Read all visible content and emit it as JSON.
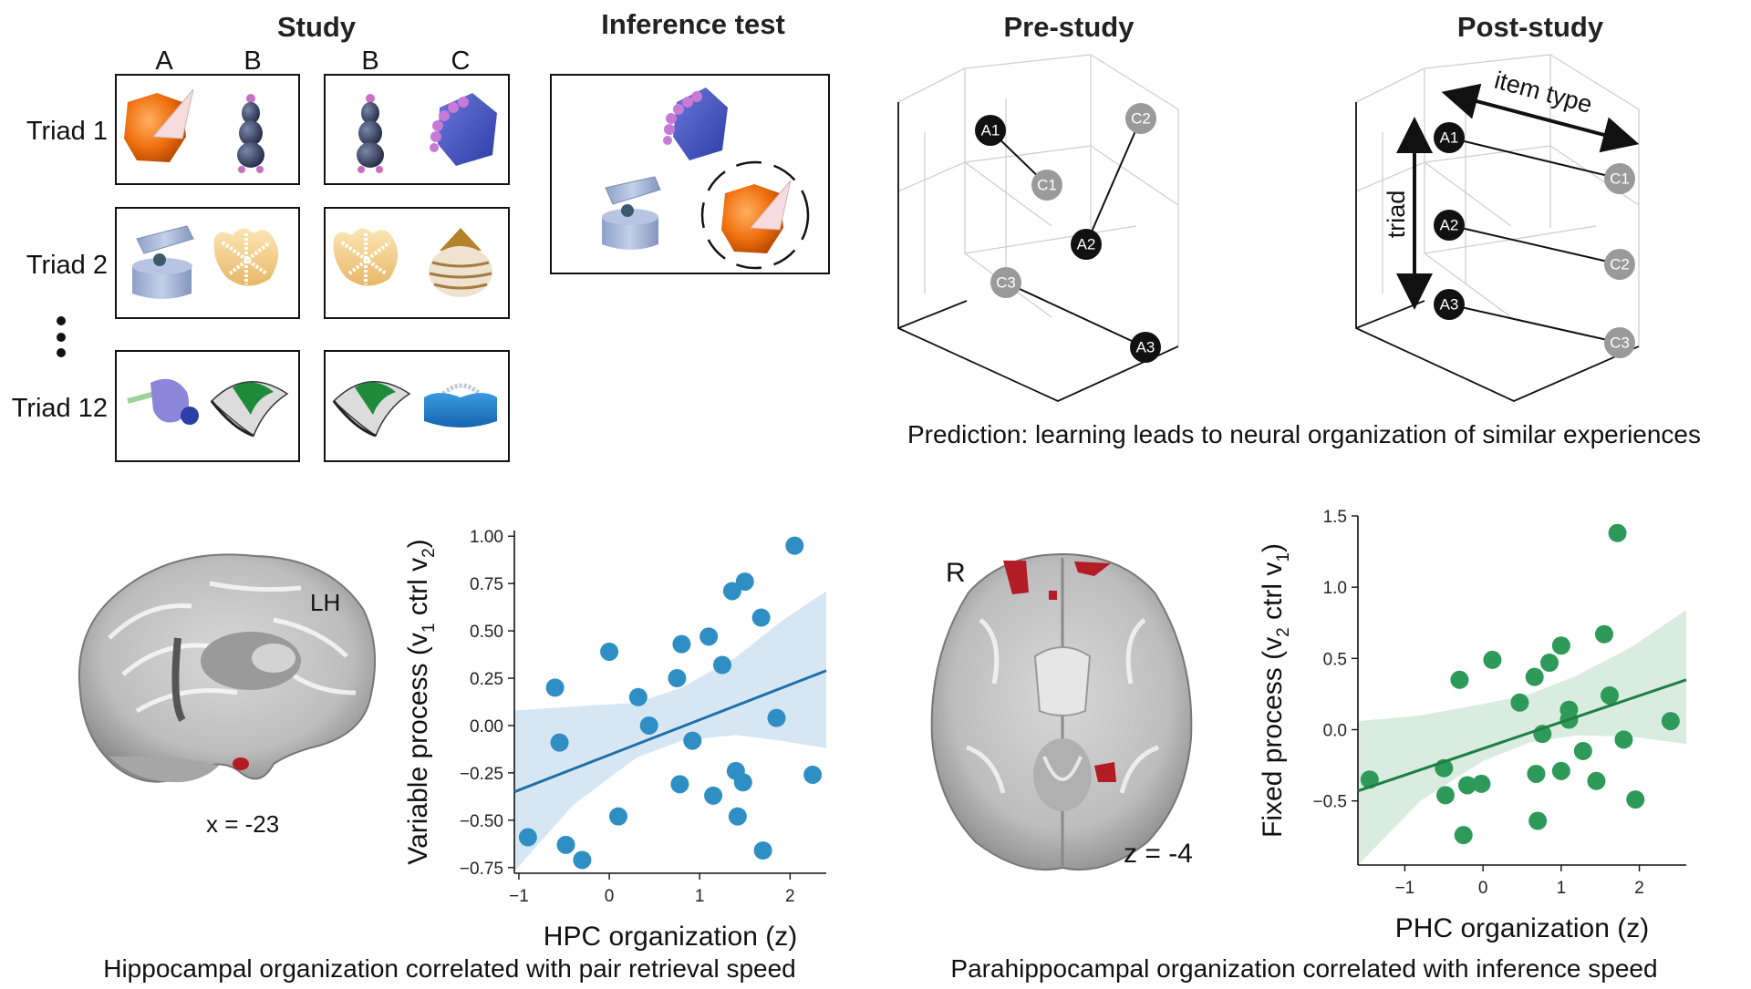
{
  "study": {
    "title": "Study",
    "col_a": "A",
    "col_b1": "B",
    "col_b2": "B",
    "col_c": "C",
    "rows": [
      {
        "label": "Triad 1"
      },
      {
        "label": "Triad 2"
      },
      {
        "label": "Triad 12"
      }
    ]
  },
  "inference": {
    "title": "Inference test"
  },
  "pre": {
    "title": "Pre-study",
    "nodes": {
      "a1": "A1",
      "a2": "A2",
      "a3": "A3",
      "c1": "C1",
      "c2": "C2",
      "c3": "C3"
    }
  },
  "post": {
    "title": "Post-study",
    "item_type_label": "item type",
    "triad_label": "triad",
    "nodes": {
      "a1": "A1",
      "a2": "A2",
      "a3": "A3",
      "c1": "C1",
      "c2": "C2",
      "c3": "C3"
    }
  },
  "prediction_caption": "Prediction: learning leads to neural organization of similar experiences",
  "brain_left": {
    "hemisphere": "LH",
    "coord": "x = -23"
  },
  "brain_right": {
    "side": "R",
    "coord": "z = -4"
  },
  "captions": {
    "left": "Hippocampal organization correlated with pair retrieval speed",
    "right": "Parahippocampal organization correlated with inference speed"
  },
  "colors": {
    "left_points": "#2f8ec4",
    "left_line": "#1f6fa8",
    "left_band": "#d6e7f3",
    "right_points": "#2e9a5a",
    "right_line": "#1d7f44",
    "right_band": "#d9ecdf",
    "activation": "#b31b25"
  },
  "chart_data": [
    {
      "type": "scatter",
      "title": "",
      "xlabel": "HPC organization (z)",
      "ylabel_main": "Variable process (v",
      "ylabel_sub1": "1",
      "ylabel_mid": " ctrl v",
      "ylabel_sub2": "2",
      "ylabel_end": ")",
      "xlim": [
        -1.05,
        2.4
      ],
      "ylim": [
        -0.78,
        1.03
      ],
      "xticks": [
        -1,
        0,
        1,
        2
      ],
      "xtick_labels": [
        "−1",
        "0",
        "1",
        "2"
      ],
      "yticks": [
        1.0,
        0.75,
        0.5,
        0.25,
        0.0,
        -0.25,
        -0.5,
        -0.75
      ],
      "ytick_labels": [
        "1.00",
        "0.75",
        "0.50",
        "0.25",
        "0.00",
        "−0.25",
        "−0.50",
        "−0.75"
      ],
      "grid": false,
      "points": [
        {
          "x": -0.9,
          "y": -0.59
        },
        {
          "x": -0.6,
          "y": 0.2
        },
        {
          "x": -0.55,
          "y": -0.09
        },
        {
          "x": -0.48,
          "y": -0.63
        },
        {
          "x": -0.3,
          "y": -0.71
        },
        {
          "x": 0.0,
          "y": 0.39
        },
        {
          "x": 0.1,
          "y": -0.48
        },
        {
          "x": 0.32,
          "y": 0.15
        },
        {
          "x": 0.44,
          "y": 0.0
        },
        {
          "x": 0.75,
          "y": 0.25
        },
        {
          "x": 0.78,
          "y": -0.31
        },
        {
          "x": 0.8,
          "y": 0.43
        },
        {
          "x": 0.92,
          "y": -0.08
        },
        {
          "x": 1.1,
          "y": 0.47
        },
        {
          "x": 1.15,
          "y": -0.37
        },
        {
          "x": 1.25,
          "y": 0.32
        },
        {
          "x": 1.36,
          "y": 0.71
        },
        {
          "x": 1.4,
          "y": -0.24
        },
        {
          "x": 1.42,
          "y": -0.48
        },
        {
          "x": 1.48,
          "y": -0.3
        },
        {
          "x": 1.5,
          "y": 0.76
        },
        {
          "x": 1.68,
          "y": 0.57
        },
        {
          "x": 1.7,
          "y": -0.66
        },
        {
          "x": 1.85,
          "y": 0.04
        },
        {
          "x": 2.05,
          "y": 0.95
        },
        {
          "x": 2.25,
          "y": -0.26
        }
      ],
      "fit": {
        "x": [
          -1.05,
          2.4
        ],
        "y": [
          -0.35,
          0.29
        ]
      },
      "ci_upper": [
        {
          "x": -1.05,
          "y": 0.08
        },
        {
          "x": -0.4,
          "y": 0.1
        },
        {
          "x": 0.3,
          "y": 0.12
        },
        {
          "x": 0.8,
          "y": 0.2
        },
        {
          "x": 1.4,
          "y": 0.36
        },
        {
          "x": 1.9,
          "y": 0.55
        },
        {
          "x": 2.4,
          "y": 0.71
        }
      ],
      "ci_lower": [
        {
          "x": 2.4,
          "y": -0.12
        },
        {
          "x": 1.9,
          "y": -0.08
        },
        {
          "x": 1.4,
          "y": -0.05
        },
        {
          "x": 0.8,
          "y": -0.08
        },
        {
          "x": 0.3,
          "y": -0.17
        },
        {
          "x": -0.4,
          "y": -0.42
        },
        {
          "x": -1.05,
          "y": -0.77
        }
      ]
    },
    {
      "type": "scatter",
      "title": "",
      "xlabel": "PHC organization (z)",
      "ylabel_main": "Fixed process (v",
      "ylabel_sub1": "2",
      "ylabel_mid": " ctrl v",
      "ylabel_sub2": "1",
      "ylabel_end": ")",
      "xlim": [
        -1.6,
        2.6
      ],
      "ylim": [
        -0.95,
        1.5
      ],
      "xticks": [
        -1,
        0,
        1,
        2
      ],
      "xtick_labels": [
        "−1",
        "0",
        "1",
        "2"
      ],
      "yticks": [
        1.5,
        1.0,
        0.5,
        0.0,
        -0.5
      ],
      "ytick_labels": [
        "1.5",
        "1.0",
        "0.5",
        "0.0",
        "−0.5"
      ],
      "grid": false,
      "points": [
        {
          "x": -1.45,
          "y": -0.35
        },
        {
          "x": -0.5,
          "y": -0.27
        },
        {
          "x": -0.48,
          "y": -0.46
        },
        {
          "x": -0.3,
          "y": 0.35
        },
        {
          "x": -0.25,
          "y": -0.74
        },
        {
          "x": -0.2,
          "y": -0.39
        },
        {
          "x": -0.02,
          "y": -0.38
        },
        {
          "x": 0.12,
          "y": 0.49
        },
        {
          "x": 0.47,
          "y": 0.19
        },
        {
          "x": 0.66,
          "y": 0.37
        },
        {
          "x": 0.68,
          "y": -0.31
        },
        {
          "x": 0.7,
          "y": -0.64
        },
        {
          "x": 0.76,
          "y": -0.03
        },
        {
          "x": 0.85,
          "y": 0.47
        },
        {
          "x": 1.0,
          "y": 0.59
        },
        {
          "x": 1.0,
          "y": -0.29
        },
        {
          "x": 1.1,
          "y": 0.07
        },
        {
          "x": 1.1,
          "y": 0.14
        },
        {
          "x": 1.28,
          "y": -0.15
        },
        {
          "x": 1.45,
          "y": -0.36
        },
        {
          "x": 1.55,
          "y": 0.67
        },
        {
          "x": 1.62,
          "y": 0.24
        },
        {
          "x": 1.72,
          "y": 1.38
        },
        {
          "x": 1.8,
          "y": -0.07
        },
        {
          "x": 1.95,
          "y": -0.49
        },
        {
          "x": 2.4,
          "y": 0.06
        }
      ],
      "fit": {
        "x": [
          -1.6,
          2.6
        ],
        "y": [
          -0.43,
          0.35
        ]
      },
      "ci_upper": [
        {
          "x": -1.6,
          "y": 0.06
        },
        {
          "x": -0.8,
          "y": 0.1
        },
        {
          "x": 0.0,
          "y": 0.18
        },
        {
          "x": 0.6,
          "y": 0.25
        },
        {
          "x": 1.2,
          "y": 0.38
        },
        {
          "x": 1.9,
          "y": 0.58
        },
        {
          "x": 2.6,
          "y": 0.84
        }
      ],
      "ci_lower": [
        {
          "x": 2.6,
          "y": -0.1
        },
        {
          "x": 1.9,
          "y": -0.05
        },
        {
          "x": 1.2,
          "y": -0.04
        },
        {
          "x": 0.6,
          "y": -0.09
        },
        {
          "x": 0.0,
          "y": -0.22
        },
        {
          "x": -0.8,
          "y": -0.5
        },
        {
          "x": -1.6,
          "y": -0.95
        }
      ]
    }
  ]
}
